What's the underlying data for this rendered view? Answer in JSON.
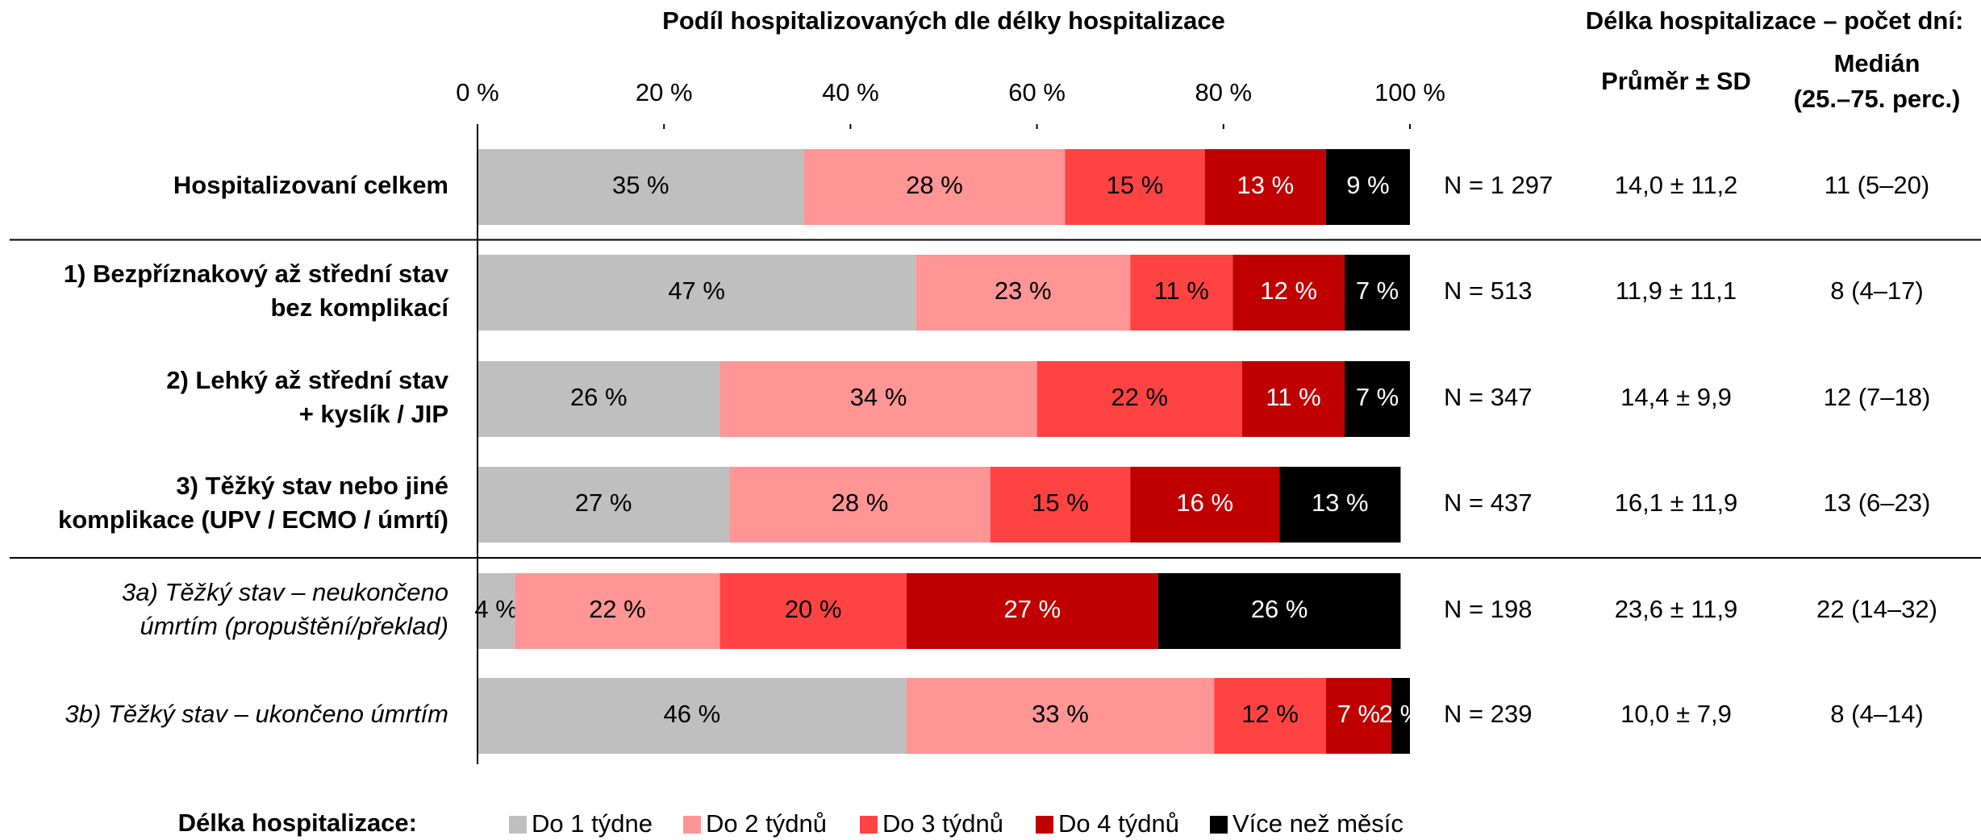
{
  "chart_data": {
    "type": "stacked_bar_horizontal",
    "title": "Podíl hospitalizovaných dle délky hospitalizace",
    "stats_title": "Délka hospitalizace – počet dní:",
    "mean_header": "Průměr ± SD",
    "median_header": "Medián\n(25.–75. perc.)",
    "legend_title": "Délka hospitalizace:",
    "categories": [
      "Hospitalizovaní celkem",
      "1) Bezpříznakový až střední stav\nbez komplikací",
      "2) Lehký až střední stav\n+ kyslík / JIP",
      "3) Těžký stav nebo jiné\nkomplikace (UPV / ECMO / úmrtí)",
      "3a) Těžký stav – neukončeno\númrtím (propuštění/překlad)",
      "3b) Těžký stav – ukončeno úmrtím"
    ],
    "label_style": [
      "bold",
      "bold",
      "bold",
      "bold",
      "italic",
      "italic"
    ],
    "separators_after": [
      0,
      3
    ],
    "series": [
      {
        "name": "Do 1 týdne",
        "color": "#bfbfbf",
        "label_color": "#000000",
        "values": [
          35,
          47,
          26,
          27,
          4,
          46
        ],
        "value_labels": [
          "35 %",
          "47 %",
          "26 %",
          "27 %",
          "4 %",
          "46 %"
        ]
      },
      {
        "name": "Do 2 týdnů",
        "color": "#ff9595",
        "label_color": "#000000",
        "values": [
          28,
          23,
          34,
          28,
          22,
          33
        ],
        "value_labels": [
          "28 %",
          "23 %",
          "34 %",
          "28 %",
          "22 %",
          "33 %"
        ]
      },
      {
        "name": "Do 3 týdnů",
        "color": "#ff4343",
        "label_color": "#000000",
        "values": [
          15,
          11,
          22,
          15,
          20,
          12
        ],
        "value_labels": [
          "15 %",
          "11 %",
          "22 %",
          "15 %",
          "20 %",
          "12 %"
        ]
      },
      {
        "name": "Do 4 týdnů",
        "color": "#c00000",
        "label_color": "#ffffff",
        "values": [
          13,
          12,
          11,
          16,
          27,
          7
        ],
        "value_labels": [
          "13 %",
          "12 %",
          "11 %",
          "16 %",
          "27 %",
          "7 %"
        ]
      },
      {
        "name": "Více než měsíc",
        "color": "#000000",
        "label_color": "#ffffff",
        "values": [
          9,
          7,
          7,
          13,
          26,
          2
        ],
        "value_labels": [
          "9 %",
          "7 %",
          "7 %",
          "13 %",
          "26 %",
          "2 %"
        ]
      }
    ],
    "n_labels": [
      "N = 1 297",
      "N = 513",
      "N = 347",
      "N = 437",
      "N = 198",
      "N = 239"
    ],
    "mean_sd": [
      "14,0 ± 11,2",
      "11,9 ± 11,1",
      "14,4 ± 9,9",
      "16,1 ± 11,9",
      "23,6 ± 11,9",
      "10,0 ± 7,9"
    ],
    "median": [
      "11 (5–20)",
      "8 (4–17)",
      "12 (7–18)",
      "13 (6–23)",
      "22 (14–32)",
      "8 (4–14)"
    ],
    "xlim": [
      0,
      100
    ],
    "xticks": [
      {
        "value": 0,
        "label": "0 %"
      },
      {
        "value": 20,
        "label": "20 %"
      },
      {
        "value": 40,
        "label": "40 %"
      },
      {
        "value": 60,
        "label": "60 %"
      },
      {
        "value": 80,
        "label": "80 %"
      },
      {
        "value": 100,
        "label": "100 %"
      }
    ]
  }
}
